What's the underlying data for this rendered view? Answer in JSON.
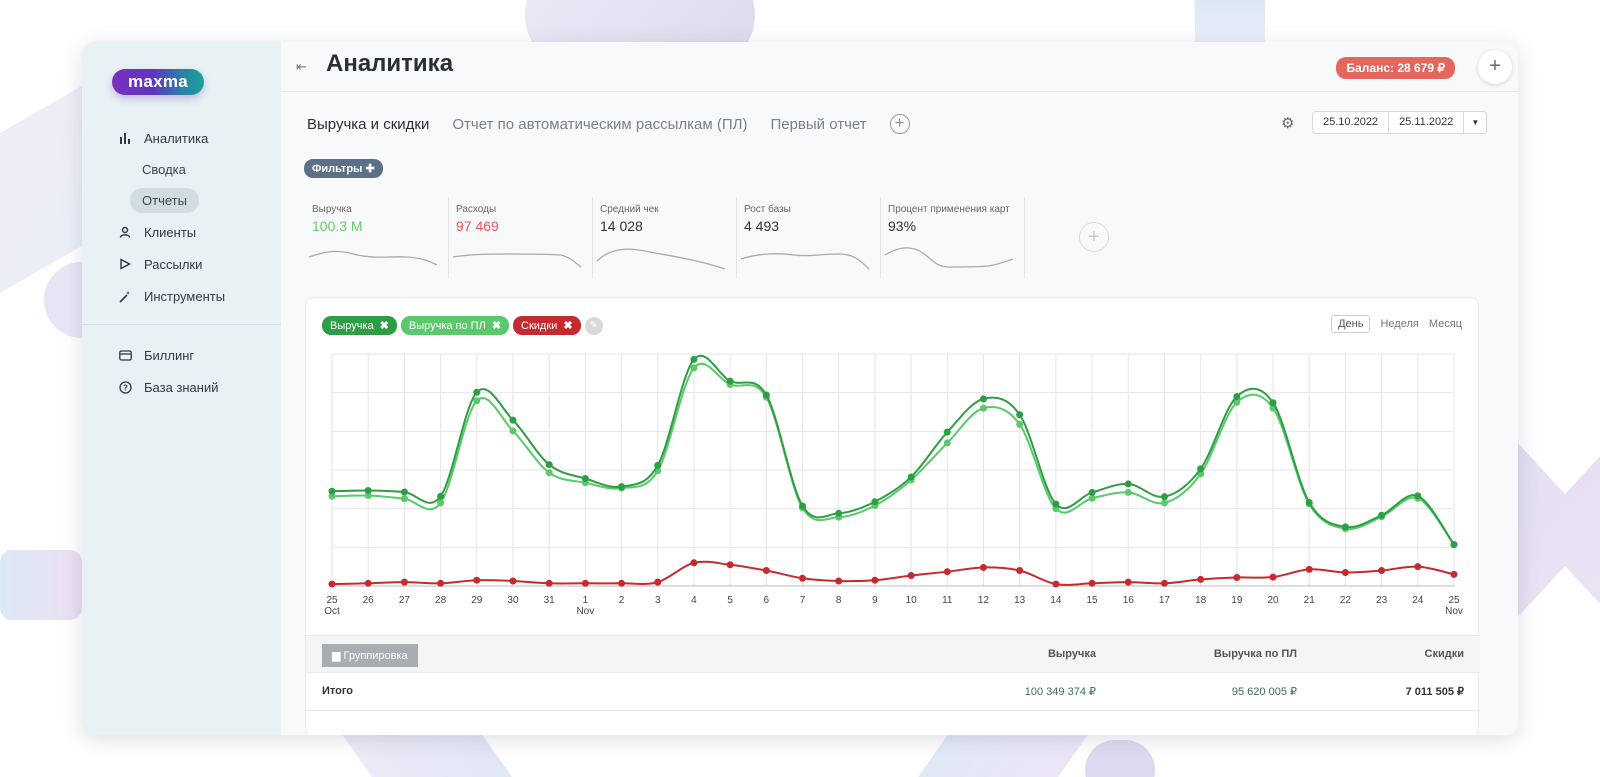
{
  "logo": {
    "text": "maxma"
  },
  "sidebar": {
    "items": [
      {
        "label": "Аналитика"
      },
      {
        "label": "Сводка"
      },
      {
        "label": "Отчеты"
      },
      {
        "label": "Клиенты"
      },
      {
        "label": "Рассылки"
      },
      {
        "label": "Инструменты"
      },
      {
        "label": "Биллинг"
      },
      {
        "label": "База знаний"
      }
    ]
  },
  "header": {
    "title": "Аналитика",
    "balance": "Баланс: 28 679 ₽",
    "add": "+"
  },
  "tabs": [
    {
      "label": "Выручка и скидки"
    },
    {
      "label": "Отчет по автоматическим рассылкам (ПЛ)"
    },
    {
      "label": "Первый отчет"
    }
  ],
  "date_range": {
    "from": "25.10.2022",
    "to": "25.11.2022"
  },
  "filters_label": "Фильтры ✚",
  "kpis": [
    {
      "label": "Выручка",
      "value": "100.3 M",
      "color": "#6cc56e"
    },
    {
      "label": "Расходы",
      "value": "97 469",
      "color": "#e5555a"
    },
    {
      "label": "Средний чек",
      "value": "14 028",
      "color": "#333333"
    },
    {
      "label": "Рост базы",
      "value": "4 493",
      "color": "#333333"
    },
    {
      "label": "Процент применения карт",
      "value": "93%",
      "color": "#333333"
    }
  ],
  "legend_chips": [
    {
      "label": "Выручка",
      "color": "#2e9e44"
    },
    {
      "label": "Выручка по ПЛ",
      "color": "#5ac96b"
    },
    {
      "label": "Скидки",
      "color": "#c62a2f"
    }
  ],
  "periods": [
    {
      "label": "День"
    },
    {
      "label": "Неделя"
    },
    {
      "label": "Месяц"
    }
  ],
  "chart_data": {
    "type": "line",
    "x": [
      "25",
      "26",
      "27",
      "28",
      "29",
      "30",
      "31",
      "1",
      "2",
      "3",
      "4",
      "5",
      "6",
      "7",
      "8",
      "9",
      "10",
      "11",
      "12",
      "13",
      "14",
      "15",
      "16",
      "17",
      "18",
      "19",
      "20",
      "21",
      "22",
      "23",
      "24",
      "25"
    ],
    "month_labels": {
      "0": "Oct",
      "7": "Nov",
      "31": "Nov"
    },
    "series": [
      {
        "name": "Выручка",
        "color": "#2e9e44",
        "values": [
          2.45,
          2.47,
          2.43,
          2.32,
          5.01,
          4.29,
          3.14,
          2.78,
          2.57,
          3.12,
          5.86,
          5.3,
          4.94,
          2.07,
          1.88,
          2.18,
          2.82,
          3.98,
          4.84,
          4.43,
          2.12,
          2.42,
          2.64,
          2.31,
          3.03,
          4.9,
          4.74,
          2.16,
          1.53,
          1.83,
          2.33,
          1.07
        ]
      },
      {
        "name": "Выручка по ПЛ",
        "color": "#5ac96b",
        "values": [
          2.32,
          2.34,
          2.26,
          2.15,
          4.79,
          4.01,
          2.93,
          2.67,
          2.53,
          2.98,
          5.64,
          5.21,
          4.88,
          2.02,
          1.78,
          2.08,
          2.74,
          3.7,
          4.6,
          4.18,
          2.0,
          2.27,
          2.42,
          2.15,
          2.9,
          4.75,
          4.6,
          2.12,
          1.48,
          1.79,
          2.27,
          1.07
        ]
      },
      {
        "name": "Скидки",
        "color": "#c62a2f",
        "values": [
          0.05,
          0.07,
          0.1,
          0.07,
          0.15,
          0.13,
          0.07,
          0.07,
          0.07,
          0.1,
          0.6,
          0.55,
          0.4,
          0.2,
          0.13,
          0.15,
          0.27,
          0.37,
          0.48,
          0.4,
          0.05,
          0.07,
          0.1,
          0.07,
          0.17,
          0.22,
          0.23,
          0.43,
          0.35,
          0.4,
          0.5,
          0.3
        ]
      }
    ],
    "ylim": [
      0,
      6
    ],
    "grid": true
  },
  "table": {
    "group_button": "Группировка",
    "headers": [
      "Выручка",
      "Выручка по ПЛ",
      "Скидки"
    ],
    "row_label": "Итого",
    "values": [
      "100 349 374 ₽",
      "95 620 005 ₽",
      "7 011 505 ₽"
    ]
  }
}
